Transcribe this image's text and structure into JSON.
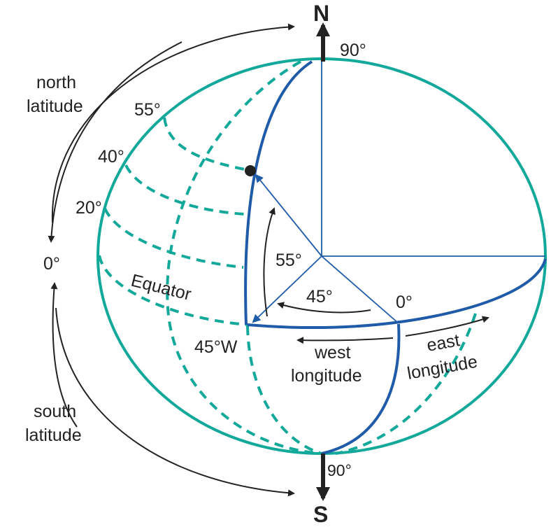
{
  "colors": {
    "teal": "#12A89A",
    "blue": "#1F5BA8",
    "black": "#222222",
    "background": "#ffffff"
  },
  "labels": {
    "north_pole": "N",
    "south_pole": "S",
    "north_90": "90°",
    "south_90": "90°",
    "north_latitude_line1": "north",
    "north_latitude_line2": "latitude",
    "south_latitude_line1": "south",
    "south_latitude_line2": "latitude",
    "lat_0": "0°",
    "lat_20": "20°",
    "lat_40": "40°",
    "lat_55": "55°",
    "equator": "Equator",
    "lon_45w": "45°W",
    "lon_0": "0°",
    "angle_45": "45°",
    "angle_55": "55°",
    "west_longitude_line1": "west",
    "west_longitude_line2": "longitude",
    "east_longitude_line1": "east",
    "east_longitude_line2": "longitude"
  }
}
